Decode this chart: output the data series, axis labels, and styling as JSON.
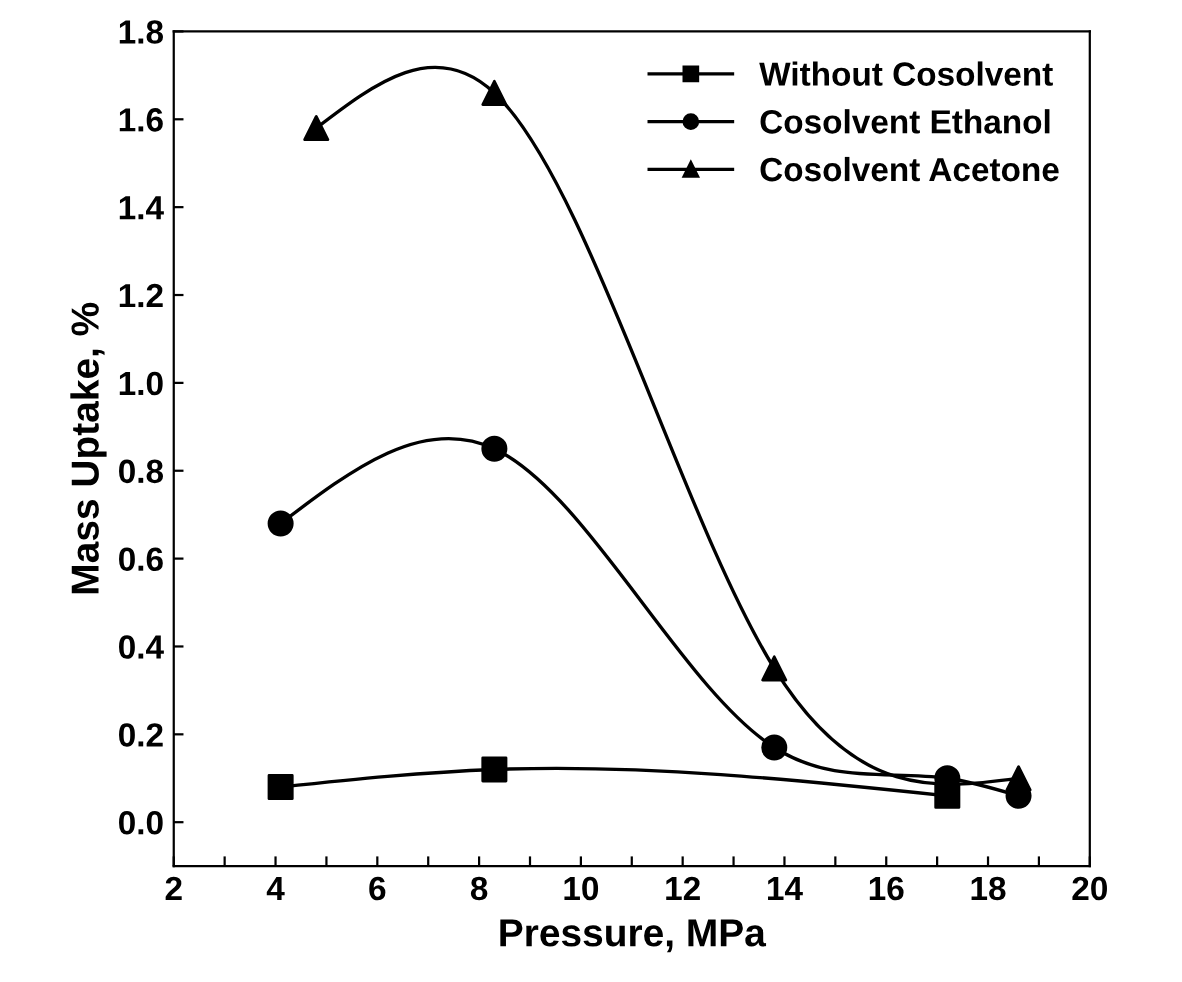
{
  "chart_data": {
    "type": "line",
    "xlabel": "Pressure, MPa",
    "ylabel": "Mass Uptake, %",
    "xlim": [
      2,
      20
    ],
    "xticks": [
      2,
      {
        "value": 3,
        "label": null
      },
      4,
      {
        "value": 5,
        "label": null
      },
      6,
      {
        "value": 7,
        "label": null
      },
      8,
      {
        "value": 9,
        "label": null
      },
      10,
      {
        "value": 11,
        "label": null
      },
      12,
      {
        "value": 13,
        "label": null
      },
      14,
      {
        "value": 15,
        "label": null
      },
      16,
      {
        "value": 17,
        "label": null
      },
      18,
      {
        "value": 19,
        "label": null
      },
      20
    ],
    "ylim": [
      -0.1,
      1.8
    ],
    "yticks": [
      {
        "value": 0,
        "label": "0.0"
      },
      0.2,
      0.4,
      0.6,
      0.8,
      {
        "value": 1,
        "label": "1.0"
      },
      1.2,
      1.4,
      1.6,
      1.8
    ],
    "legend": "top right",
    "grid": false,
    "series": [
      {
        "name": "Without Cosolvent",
        "color": "#000000",
        "marker": "square",
        "x": [
          4.1,
          8.3,
          17.2
        ],
        "values": [
          0.08,
          0.12,
          0.06
        ]
      },
      {
        "name": "Cosolvent Ethanol",
        "color": "#000000",
        "marker": "circle",
        "x": [
          4.1,
          8.3,
          13.8,
          17.2,
          18.6
        ],
        "values": [
          0.68,
          0.85,
          0.17,
          0.1,
          0.06
        ]
      },
      {
        "name": "Cosolvent Acetone",
        "color": "#000000",
        "marker": "triangle",
        "x": [
          4.8,
          8.3,
          13.8,
          18.6
        ],
        "values": [
          1.58,
          1.66,
          0.35,
          0.1
        ]
      }
    ]
  }
}
